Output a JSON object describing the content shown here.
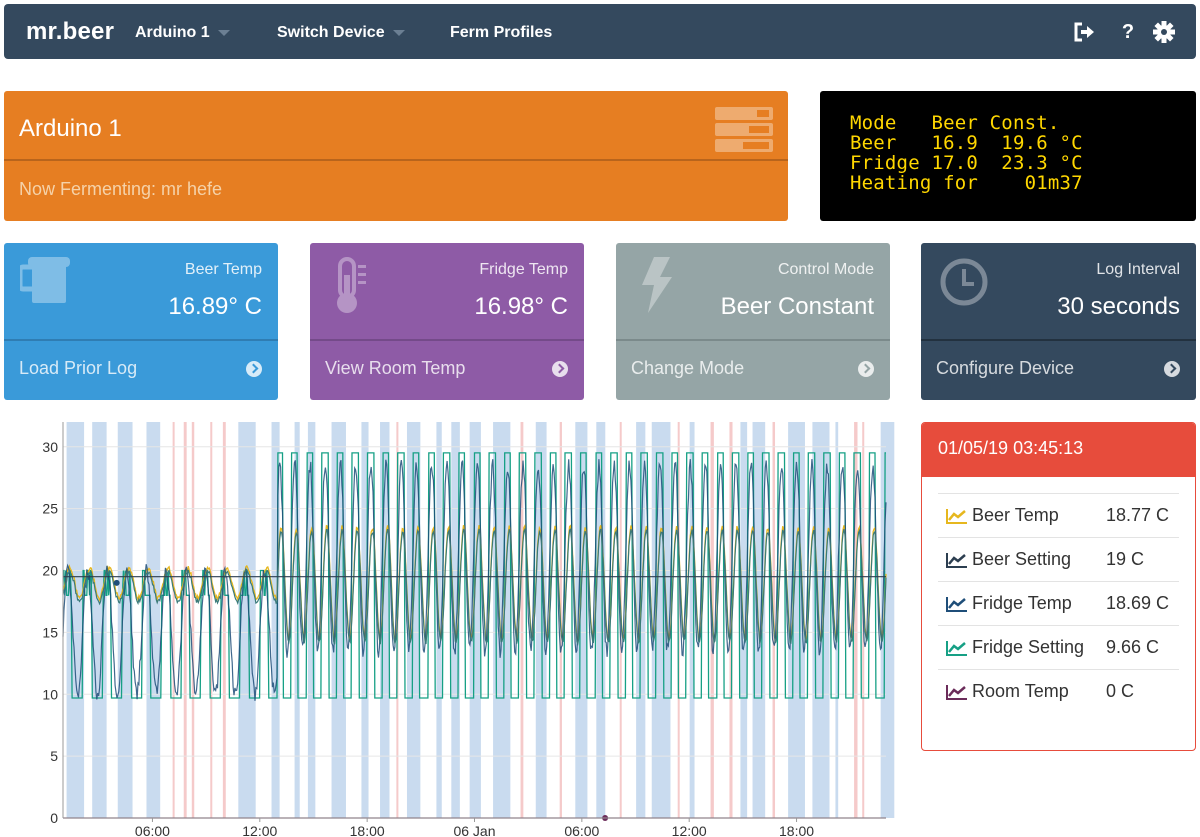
{
  "navbar": {
    "brand": "mr.beer",
    "items": [
      {
        "label": "Arduino 1",
        "dropdown": true
      },
      {
        "label": "Switch Device",
        "dropdown": true
      },
      {
        "label": "Ferm Profiles",
        "dropdown": false
      }
    ],
    "icons": [
      "sign-out-icon",
      "help-icon",
      "gear-icon"
    ],
    "help_glyph": "?"
  },
  "device": {
    "name": "Arduino 1",
    "status": "Now Fermenting: mr hefe",
    "color": "#e67e22"
  },
  "lcd": {
    "lines": [
      "Mode   Beer Const.",
      "Beer   16.9  19.6 °C",
      "Fridge 17.0  23.3 °C",
      "Heating for    01m37"
    ]
  },
  "cards": [
    {
      "label": "Beer Temp",
      "value": "16.89° C",
      "link": "Load Prior Log",
      "color": "#3a9ad9",
      "icon": "beer-mug-icon"
    },
    {
      "label": "Fridge Temp",
      "value": "16.98° C",
      "link": "View Room Temp",
      "color": "#8e5ba6",
      "icon": "thermometer-icon"
    },
    {
      "label": "Control Mode",
      "value": "Beer Constant",
      "link": "Change Mode",
      "color": "#95a5a6",
      "icon": "lightning-icon"
    },
    {
      "label": "Log Interval",
      "value": "30 seconds",
      "link": "Configure Device",
      "color": "#34495e",
      "icon": "clock-icon"
    }
  ],
  "legend": {
    "timestamp": "01/05/19 03:45:13",
    "rows": [
      {
        "name": "Beer Temp",
        "value": "18.77 C",
        "color": "#e6b71e"
      },
      {
        "name": "Beer Setting",
        "value": "19 C",
        "color": "#2c3e50"
      },
      {
        "name": "Fridge Temp",
        "value": "18.69 C",
        "color": "#1f4e79"
      },
      {
        "name": "Fridge Setting",
        "value": "9.66 C",
        "color": "#16a085"
      },
      {
        "name": "Room Temp",
        "value": "0 C",
        "color": "#6b2c5a"
      }
    ]
  },
  "chart_data": {
    "type": "line",
    "x_ticks": [
      "06:00",
      "12:00",
      "18:00",
      "06 Jan",
      "06:00",
      "12:00",
      "18:00"
    ],
    "y_ticks": [
      "0",
      "5",
      "10",
      "15",
      "20",
      "25",
      "30"
    ],
    "ylim": [
      0,
      32
    ],
    "x_range_hours": [
      0,
      46
    ],
    "x_tick_hours": [
      5,
      11,
      17,
      23,
      29,
      35,
      41
    ],
    "grid": true,
    "series": [
      {
        "name": "Beer Temp",
        "color": "#e6b71e"
      },
      {
        "name": "Beer Setting",
        "color": "#2c3e50"
      },
      {
        "name": "Fridge Temp",
        "color": "#1f4e79"
      },
      {
        "name": "Fridge Setting",
        "color": "#16a085"
      },
      {
        "name": "Room Temp",
        "color": "#6b2c5a"
      }
    ],
    "beer_setting": 19.5,
    "heating_color": "#f2b8b8",
    "cooling_color": "#bcd2eb"
  }
}
